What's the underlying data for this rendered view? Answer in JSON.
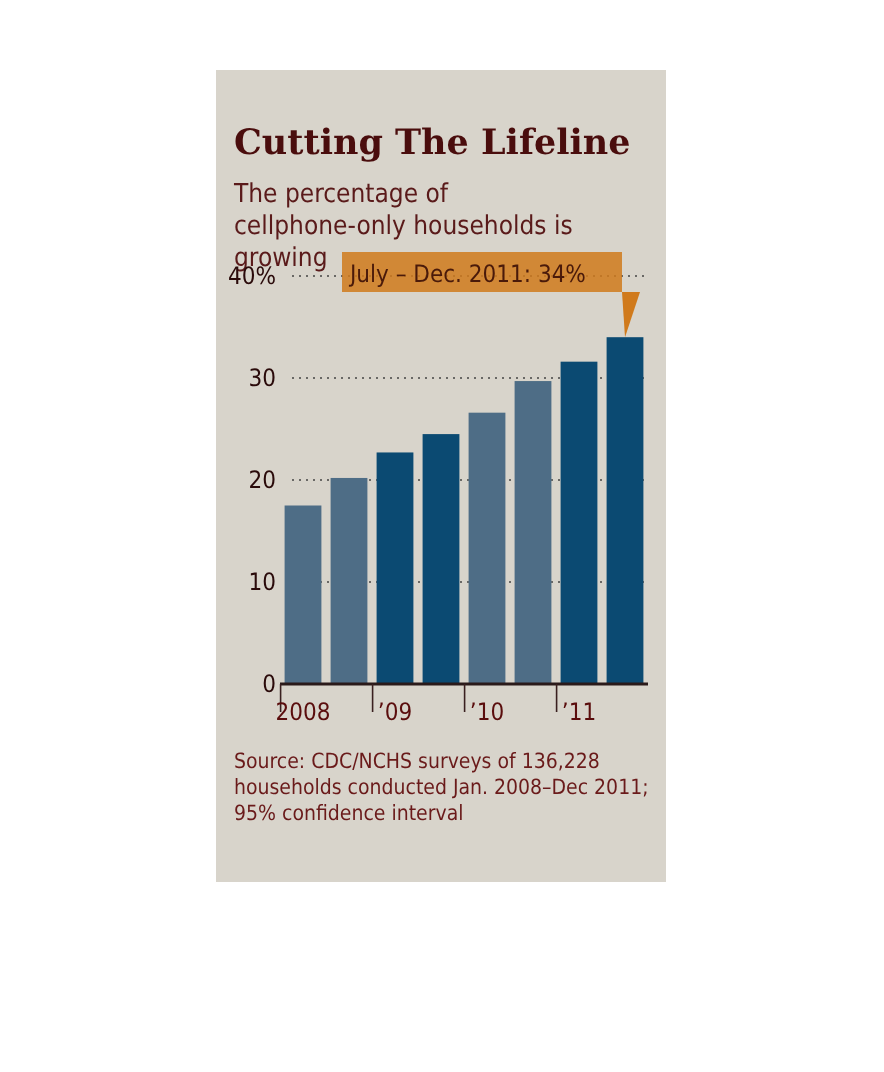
{
  "chart_data": {
    "type": "bar",
    "title": "Cutting The Lifeline",
    "subtitle": "The percentage of cellphone-only households is growing",
    "categories": [
      "2008",
      null,
      "’09",
      null,
      "’10",
      null,
      "’11",
      null
    ],
    "values": [
      17.5,
      20.2,
      22.7,
      24.5,
      26.6,
      29.7,
      31.6,
      34
    ],
    "colors": [
      "#4e6d86",
      "#4e6d86",
      "#0b4a72",
      "#0b4a72",
      "#4e6d86",
      "#4e6d86",
      "#0b4a72",
      "#0b4a72"
    ],
    "ylim": [
      0,
      40
    ],
    "yticks": [
      0,
      10,
      20,
      30,
      {
        "value": 40,
        "label": "40%"
      }
    ],
    "grid": "y",
    "annotations": [
      "July – Dec. 2011: 34%",
      "Source: CDC/NCHS surveys of 136,228 households conducted Jan. 2008–Dec 2011; 95% confidence interval"
    ]
  }
}
